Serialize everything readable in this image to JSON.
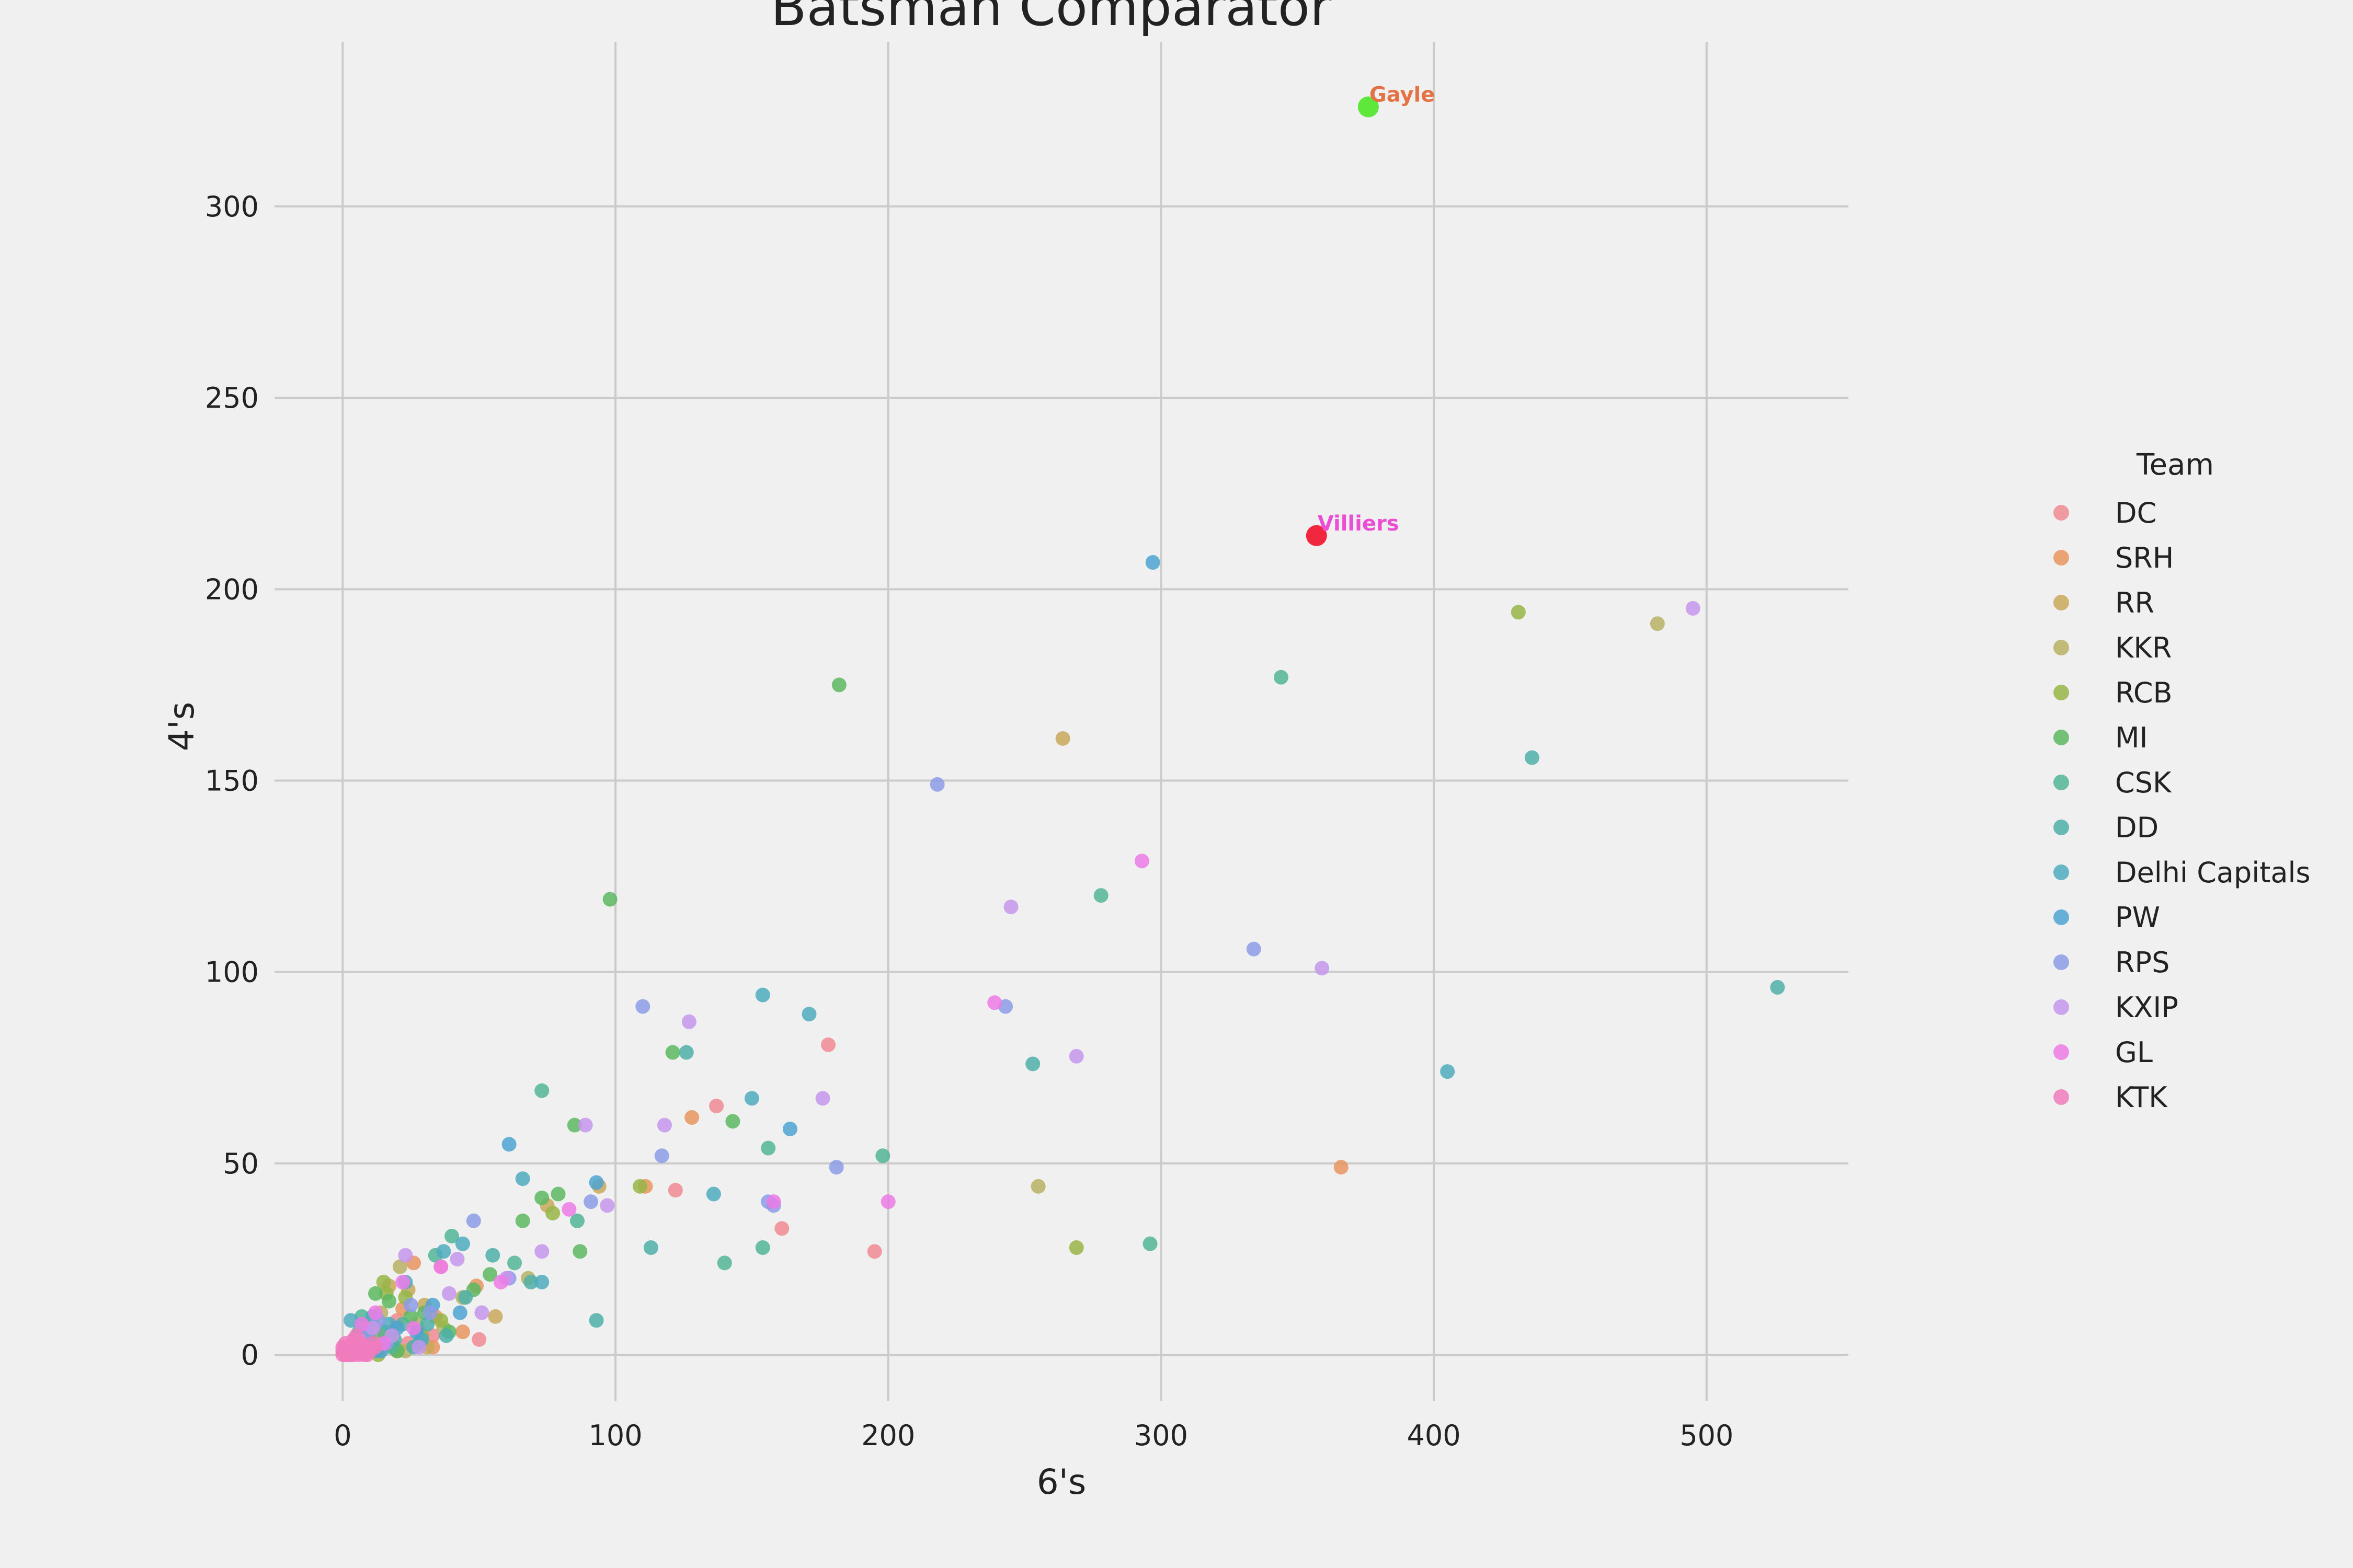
{
  "chart_data": {
    "type": "scatter",
    "title": "Batsman Comparator",
    "xlabel": "6's",
    "ylabel": "4's",
    "xlim": [
      -25,
      552
    ],
    "ylim": [
      -12,
      343
    ],
    "x_ticks": [
      0,
      100,
      200,
      300,
      400,
      500
    ],
    "y_ticks": [
      0,
      50,
      100,
      150,
      200,
      250,
      300
    ],
    "grid": true,
    "legend": {
      "title": "Team",
      "position": "right",
      "entries": [
        {
          "name": "DC",
          "color": "#f08a93"
        },
        {
          "name": "SRH",
          "color": "#e8955e"
        },
        {
          "name": "RR",
          "color": "#c9a85a"
        },
        {
          "name": "KKR",
          "color": "#b8b265"
        },
        {
          "name": "RCB",
          "color": "#97b547"
        },
        {
          "name": "MI",
          "color": "#5cb860"
        },
        {
          "name": "CSK",
          "color": "#52b596"
        },
        {
          "name": "DD",
          "color": "#4fb0a8"
        },
        {
          "name": "Delhi Capitals",
          "color": "#4eacbe"
        },
        {
          "name": "PW",
          "color": "#4ea3d1"
        },
        {
          "name": "RPS",
          "color": "#8c9ce8"
        },
        {
          "name": "KXIP",
          "color": "#c595ec"
        },
        {
          "name": "GL",
          "color": "#ec7be6"
        },
        {
          "name": "KTK",
          "color": "#f07bbd"
        }
      ]
    },
    "series": [
      {
        "name": "DC",
        "color": "#f08a93",
        "points": [
          [
            195,
            27
          ],
          [
            122,
            43
          ],
          [
            137,
            65
          ],
          [
            178,
            81
          ],
          [
            161,
            33
          ],
          [
            50,
            4
          ],
          [
            33,
            5
          ],
          [
            3,
            2
          ],
          [
            12,
            7
          ],
          [
            20,
            9
          ],
          [
            8,
            4
          ],
          [
            24,
            3
          ],
          [
            5,
            1
          ],
          [
            15,
            5
          ],
          [
            28,
            6
          ],
          [
            36,
            23
          ]
        ]
      },
      {
        "name": "SRH",
        "color": "#e8955e",
        "points": [
          [
            366,
            49
          ],
          [
            128,
            62
          ],
          [
            111,
            44
          ],
          [
            49,
            18
          ],
          [
            44,
            6
          ],
          [
            26,
            24
          ],
          [
            34,
            10
          ],
          [
            10,
            3
          ],
          [
            18,
            6
          ],
          [
            4,
            2
          ],
          [
            22,
            12
          ],
          [
            7,
            8
          ],
          [
            33,
            2
          ],
          [
            20,
            1
          ]
        ]
      },
      {
        "name": "RR",
        "color": "#c9a85a",
        "points": [
          [
            264,
            161
          ],
          [
            56,
            10
          ],
          [
            75,
            39
          ],
          [
            94,
            44
          ],
          [
            30,
            13
          ],
          [
            14,
            4
          ],
          [
            9,
            6
          ],
          [
            17,
            18
          ],
          [
            3,
            1
          ],
          [
            24,
            17
          ],
          [
            31,
            2
          ],
          [
            6,
            5
          ]
        ]
      },
      {
        "name": "KKR",
        "color": "#b8b265",
        "points": [
          [
            482,
            191
          ],
          [
            255,
            44
          ],
          [
            44,
            15
          ],
          [
            21,
            23
          ],
          [
            68,
            20
          ],
          [
            9,
            3
          ],
          [
            27,
            8
          ],
          [
            14,
            11
          ],
          [
            5,
            2
          ],
          [
            18,
            3
          ],
          [
            37,
            7
          ],
          [
            2,
            0
          ],
          [
            23,
            1
          ]
        ]
      },
      {
        "name": "RCB",
        "color": "#97b547",
        "points": [
          [
            431,
            194
          ],
          [
            269,
            28
          ],
          [
            109,
            44
          ],
          [
            77,
            37
          ],
          [
            15,
            19
          ],
          [
            23,
            15
          ],
          [
            11,
            9
          ],
          [
            6,
            4
          ],
          [
            19,
            2
          ],
          [
            29,
            5
          ],
          [
            3,
            1
          ],
          [
            13,
            0
          ],
          [
            16,
            16
          ],
          [
            36,
            9
          ]
        ]
      },
      {
        "name": "MI",
        "color": "#5cb860",
        "points": [
          [
            182,
            175
          ],
          [
            98,
            119
          ],
          [
            143,
            61
          ],
          [
            121,
            79
          ],
          [
            85,
            60
          ],
          [
            73,
            41
          ],
          [
            79,
            42
          ],
          [
            54,
            21
          ],
          [
            87,
            27
          ],
          [
            39,
            6
          ],
          [
            66,
            35
          ],
          [
            25,
            10
          ],
          [
            12,
            16
          ],
          [
            17,
            14
          ],
          [
            7,
            5
          ],
          [
            30,
            11
          ],
          [
            4,
            2
          ],
          [
            20,
            1
          ],
          [
            48,
            17
          ],
          [
            9,
            1
          ]
        ]
      },
      {
        "name": "CSK",
        "color": "#52b596",
        "points": [
          [
            344,
            177
          ],
          [
            278,
            120
          ],
          [
            198,
            52
          ],
          [
            156,
            54
          ],
          [
            140,
            24
          ],
          [
            296,
            29
          ],
          [
            154,
            28
          ],
          [
            73,
            69
          ],
          [
            86,
            35
          ],
          [
            40,
            31
          ],
          [
            63,
            24
          ],
          [
            34,
            26
          ],
          [
            10,
            4
          ],
          [
            22,
            8
          ],
          [
            15,
            6
          ],
          [
            3,
            1
          ],
          [
            28,
            3
          ],
          [
            7,
            10
          ],
          [
            18,
            2
          ]
        ]
      },
      {
        "name": "DD",
        "color": "#4fb0a8",
        "points": [
          [
            526,
            96
          ],
          [
            436,
            156
          ],
          [
            253,
            76
          ],
          [
            126,
            79
          ],
          [
            113,
            28
          ],
          [
            69,
            19
          ],
          [
            55,
            26
          ],
          [
            93,
            9
          ],
          [
            38,
            5
          ],
          [
            45,
            15
          ],
          [
            26,
            2
          ],
          [
            12,
            1
          ],
          [
            6,
            6
          ],
          [
            19,
            4
          ],
          [
            2,
            0
          ],
          [
            31,
            8
          ]
        ]
      },
      {
        "name": "Delhi Capitals",
        "color": "#4eacbe",
        "points": [
          [
            405,
            74
          ],
          [
            171,
            89
          ],
          [
            136,
            42
          ],
          [
            154,
            94
          ],
          [
            150,
            67
          ],
          [
            66,
            46
          ],
          [
            73,
            19
          ],
          [
            44,
            29
          ],
          [
            37,
            27
          ],
          [
            23,
            19
          ],
          [
            11,
            10
          ],
          [
            5,
            3
          ],
          [
            17,
            8
          ],
          [
            3,
            9
          ],
          [
            29,
            4
          ]
        ]
      },
      {
        "name": "PW",
        "color": "#4ea3d1",
        "points": [
          [
            297,
            207
          ],
          [
            164,
            59
          ],
          [
            93,
            45
          ],
          [
            61,
            55
          ],
          [
            43,
            11
          ],
          [
            20,
            7
          ],
          [
            8,
            3
          ],
          [
            14,
            1
          ],
          [
            2,
            2
          ],
          [
            27,
            6
          ],
          [
            33,
            13
          ]
        ]
      },
      {
        "name": "RPS",
        "color": "#8c9ce8",
        "points": [
          [
            218,
            149
          ],
          [
            334,
            106
          ],
          [
            243,
            91
          ],
          [
            181,
            49
          ],
          [
            117,
            52
          ],
          [
            110,
            91
          ],
          [
            156,
            40
          ],
          [
            158,
            39
          ],
          [
            91,
            40
          ],
          [
            48,
            35
          ],
          [
            61,
            20
          ],
          [
            32,
            11
          ],
          [
            25,
            13
          ],
          [
            16,
            3
          ],
          [
            9,
            6
          ],
          [
            4,
            1
          ],
          [
            13,
            9
          ]
        ]
      },
      {
        "name": "KXIP",
        "color": "#c595ec",
        "points": [
          [
            495,
            195
          ],
          [
            359,
            101
          ],
          [
            245,
            117
          ],
          [
            269,
            78
          ],
          [
            127,
            87
          ],
          [
            176,
            67
          ],
          [
            118,
            60
          ],
          [
            89,
            60
          ],
          [
            97,
            39
          ],
          [
            73,
            27
          ],
          [
            51,
            11
          ],
          [
            39,
            16
          ],
          [
            23,
            26
          ],
          [
            11,
            7
          ],
          [
            6,
            4
          ],
          [
            18,
            5
          ],
          [
            3,
            0
          ],
          [
            28,
            2
          ],
          [
            42,
            25
          ],
          [
            60,
            20
          ]
        ]
      },
      {
        "name": "GL",
        "color": "#ec7be6",
        "points": [
          [
            293,
            129
          ],
          [
            239,
            92
          ],
          [
            200,
            40
          ],
          [
            158,
            40
          ],
          [
            83,
            38
          ],
          [
            58,
            19
          ],
          [
            36,
            23
          ],
          [
            22,
            19
          ],
          [
            12,
            11
          ],
          [
            7,
            8
          ],
          [
            4,
            2
          ],
          [
            15,
            3
          ],
          [
            1,
            0
          ],
          [
            9,
            1
          ],
          [
            26,
            7
          ]
        ]
      },
      {
        "name": "KTK",
        "color": "#f07bbd",
        "points": [
          [
            0,
            0
          ],
          [
            1,
            1
          ],
          [
            2,
            0
          ],
          [
            3,
            2
          ],
          [
            4,
            1
          ],
          [
            5,
            3
          ],
          [
            6,
            0
          ],
          [
            7,
            1
          ],
          [
            8,
            2
          ],
          [
            1,
            3
          ],
          [
            2,
            2
          ],
          [
            3,
            0
          ],
          [
            4,
            4
          ],
          [
            5,
            1
          ],
          [
            0,
            2
          ],
          [
            6,
            2
          ],
          [
            10,
            1
          ],
          [
            1,
            0
          ],
          [
            2,
            1
          ],
          [
            3,
            1
          ],
          [
            7,
            3
          ],
          [
            9,
            0
          ],
          [
            12,
            2
          ],
          [
            0,
            1
          ],
          [
            5,
            5
          ],
          [
            8,
            0
          ],
          [
            11,
            3
          ],
          [
            4,
            0
          ]
        ]
      }
    ],
    "highlights": [
      {
        "label": "Gayle",
        "x": 376,
        "y": 326,
        "point_color": "#5ee83b",
        "label_color": "#e57245"
      },
      {
        "label": "Villiers",
        "x": 357,
        "y": 214,
        "point_color": "#f0273e",
        "label_color": "#ec4fd6"
      }
    ]
  }
}
